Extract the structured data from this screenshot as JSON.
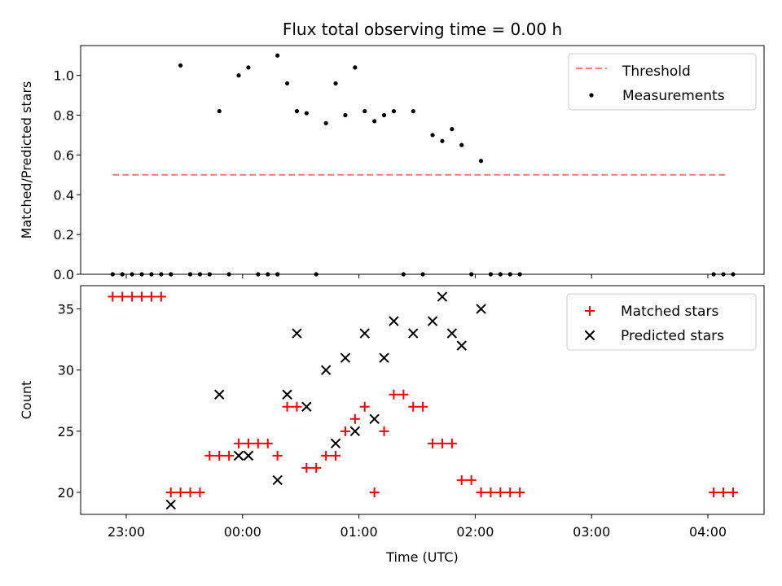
{
  "chart_data": [
    {
      "type": "scatter",
      "title": "Flux total observing time = 0.00 h",
      "xlabel": "",
      "ylabel": "Matched/Predicted stars",
      "ylim": [
        0,
        1.15
      ],
      "yticks": [
        "0.0",
        "0.2",
        "0.4",
        "0.6",
        "0.8",
        "1.0"
      ],
      "grid": false,
      "legend_position": "top-right",
      "series": [
        {
          "name": "Threshold",
          "style": "dashed-line",
          "color": "#ff7f7f",
          "x": [
            "22:53",
            "04:10"
          ],
          "y": [
            0.5,
            0.5
          ]
        },
        {
          "name": "Measurements",
          "style": "dot",
          "color": "#000000",
          "points": [
            [
              "22:53",
              0
            ],
            [
              "22:58",
              0
            ],
            [
              "23:03",
              0
            ],
            [
              "23:08",
              0
            ],
            [
              "23:13",
              0
            ],
            [
              "23:18",
              0
            ],
            [
              "23:23",
              0
            ],
            [
              "23:28",
              1.05
            ],
            [
              "23:33",
              0
            ],
            [
              "23:38",
              0
            ],
            [
              "23:43",
              0
            ],
            [
              "23:48",
              0.82
            ],
            [
              "23:53",
              0
            ],
            [
              "23:58",
              1.0
            ],
            [
              "00:03",
              1.04
            ],
            [
              "00:08",
              0
            ],
            [
              "00:13",
              0
            ],
            [
              "00:18",
              0
            ],
            [
              "00:18",
              1.1
            ],
            [
              "00:23",
              0.96
            ],
            [
              "00:28",
              0.82
            ],
            [
              "00:33",
              0.81
            ],
            [
              "00:38",
              0
            ],
            [
              "00:43",
              0.76
            ],
            [
              "00:48",
              0.96
            ],
            [
              "00:53",
              0.8
            ],
            [
              "00:58",
              1.04
            ],
            [
              "01:03",
              0.82
            ],
            [
              "01:08",
              0.77
            ],
            [
              "01:13",
              0.8
            ],
            [
              "01:18",
              0.82
            ],
            [
              "01:23",
              0
            ],
            [
              "01:28",
              0.82
            ],
            [
              "01:33",
              0
            ],
            [
              "01:38",
              0.7
            ],
            [
              "01:43",
              0.67
            ],
            [
              "01:48",
              0.73
            ],
            [
              "01:53",
              0.65
            ],
            [
              "01:58",
              0
            ],
            [
              "02:03",
              0.57
            ],
            [
              "02:08",
              0
            ],
            [
              "02:13",
              0
            ],
            [
              "02:18",
              0
            ],
            [
              "02:23",
              0
            ],
            [
              "04:03",
              0
            ],
            [
              "04:08",
              0
            ],
            [
              "04:13",
              0
            ]
          ]
        }
      ]
    },
    {
      "type": "scatter",
      "title": "",
      "xlabel": "Time (UTC)",
      "ylabel": "Count",
      "ylim": [
        18.2,
        36.9
      ],
      "yticks": [
        "20",
        "25",
        "30",
        "35"
      ],
      "xticks": [
        "23:00",
        "00:00",
        "01:00",
        "02:00",
        "03:00",
        "04:00"
      ],
      "grid": false,
      "legend_position": "top-right",
      "series": [
        {
          "name": "Matched stars",
          "style": "plus",
          "color": "#ff0000",
          "points": [
            [
              "22:53",
              36
            ],
            [
              "22:58",
              36
            ],
            [
              "23:03",
              36
            ],
            [
              "23:08",
              36
            ],
            [
              "23:13",
              36
            ],
            [
              "23:18",
              36
            ],
            [
              "23:23",
              20
            ],
            [
              "23:28",
              20
            ],
            [
              "23:33",
              20
            ],
            [
              "23:38",
              20
            ],
            [
              "23:43",
              23
            ],
            [
              "23:48",
              23
            ],
            [
              "23:53",
              23
            ],
            [
              "23:58",
              24
            ],
            [
              "00:03",
              24
            ],
            [
              "00:08",
              24
            ],
            [
              "00:13",
              24
            ],
            [
              "00:18",
              23
            ],
            [
              "00:23",
              27
            ],
            [
              "00:28",
              27
            ],
            [
              "00:33",
              22
            ],
            [
              "00:38",
              22
            ],
            [
              "00:43",
              23
            ],
            [
              "00:48",
              23
            ],
            [
              "00:53",
              25
            ],
            [
              "00:58",
              26
            ],
            [
              "01:03",
              27
            ],
            [
              "01:08",
              20
            ],
            [
              "01:13",
              25
            ],
            [
              "01:18",
              28
            ],
            [
              "01:23",
              28
            ],
            [
              "01:28",
              27
            ],
            [
              "01:33",
              27
            ],
            [
              "01:38",
              24
            ],
            [
              "01:43",
              24
            ],
            [
              "01:48",
              24
            ],
            [
              "01:53",
              21
            ],
            [
              "01:58",
              21
            ],
            [
              "02:03",
              20
            ],
            [
              "02:08",
              20
            ],
            [
              "02:13",
              20
            ],
            [
              "02:18",
              20
            ],
            [
              "02:23",
              20
            ],
            [
              "04:03",
              20
            ],
            [
              "04:08",
              20
            ],
            [
              "04:13",
              20
            ]
          ]
        },
        {
          "name": "Predicted stars",
          "style": "x",
          "color": "#000000",
          "points": [
            [
              "23:23",
              19
            ],
            [
              "23:48",
              28
            ],
            [
              "23:58",
              23
            ],
            [
              "00:03",
              23
            ],
            [
              "00:18",
              21
            ],
            [
              "00:23",
              28
            ],
            [
              "00:28",
              33
            ],
            [
              "00:33",
              27
            ],
            [
              "00:43",
              30
            ],
            [
              "00:48",
              24
            ],
            [
              "00:53",
              31
            ],
            [
              "00:58",
              25
            ],
            [
              "01:03",
              33
            ],
            [
              "01:08",
              26
            ],
            [
              "01:13",
              31
            ],
            [
              "01:18",
              34
            ],
            [
              "01:28",
              33
            ],
            [
              "01:38",
              34
            ],
            [
              "01:43",
              36
            ],
            [
              "01:48",
              33
            ],
            [
              "01:53",
              32
            ],
            [
              "02:03",
              35
            ]
          ]
        }
      ]
    }
  ]
}
